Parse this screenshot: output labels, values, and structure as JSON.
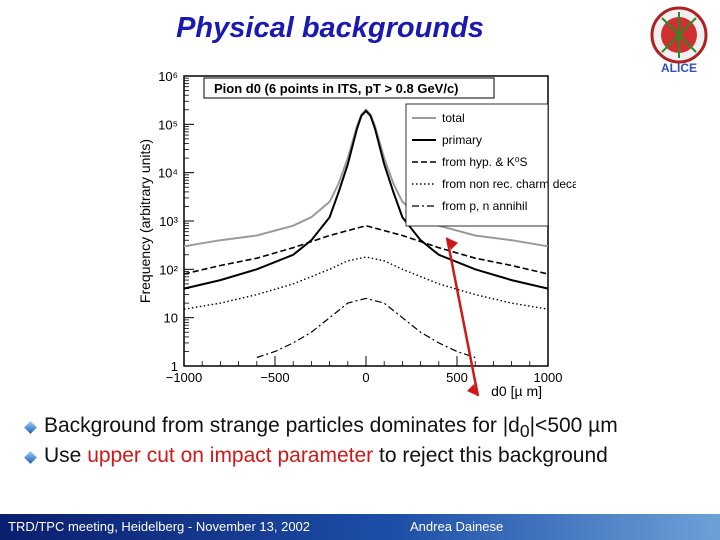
{
  "slide": {
    "title": "Physical backgrounds",
    "logo_text": "ALICE",
    "bullets": [
      {
        "prefix": "Background from strange particles dominates for |d",
        "sub": "0",
        "suffix": "|<500 µm"
      },
      {
        "before": "Use ",
        "highlight": "upper cut on impact parameter",
        "after": " to reject this background"
      }
    ],
    "footer_left": "TRD/TPC meeting, Heidelberg - November 13, 2002",
    "footer_right": "Andrea Dainese",
    "colors": {
      "title": "#1a1ab0",
      "highlight": "#d01818",
      "footer": "#0b1e6e",
      "arrow": "#d01818"
    }
  },
  "chart_data": {
    "type": "line",
    "title": "Pion d0 (6 points in ITS, pT > 0.8 GeV/c)",
    "xlabel": "d0 [µ m]",
    "ylabel": "Frequency (arbitrary units)",
    "xlim": [
      -1000,
      1000
    ],
    "ylim": [
      1,
      1000000
    ],
    "yscale": "log",
    "xticks": [
      "−1000",
      "−500",
      "0",
      "500",
      "1000"
    ],
    "yticks": [
      "1",
      "10",
      "10²",
      "10³",
      "10⁴",
      "10⁵",
      "10⁶"
    ],
    "legend_position": "top-right",
    "series": [
      {
        "name": "total",
        "style": "solid-gray",
        "x": [
          -1000,
          -800,
          -600,
          -400,
          -300,
          -200,
          -150,
          -100,
          -50,
          -25,
          0,
          25,
          50,
          100,
          150,
          200,
          300,
          400,
          600,
          800,
          1000
        ],
        "y": [
          300,
          400,
          500,
          800,
          1200,
          2500,
          6000,
          20000,
          90000,
          160000,
          200000,
          160000,
          90000,
          20000,
          6000,
          2500,
          1200,
          800,
          500,
          400,
          300
        ]
      },
      {
        "name": "primary",
        "style": "solid-black",
        "x": [
          -1000,
          -800,
          -600,
          -400,
          -300,
          -200,
          -150,
          -100,
          -50,
          -25,
          0,
          25,
          50,
          100,
          150,
          200,
          300,
          400,
          600,
          800,
          1000
        ],
        "y": [
          40,
          60,
          100,
          200,
          400,
          1200,
          4000,
          15000,
          80000,
          150000,
          190000,
          150000,
          80000,
          15000,
          4000,
          1200,
          400,
          200,
          100,
          60,
          40
        ]
      },
      {
        "name": "from hyp. & K⁰S",
        "style": "dashed",
        "x": [
          -1000,
          -800,
          -600,
          -400,
          -200,
          0,
          200,
          400,
          600,
          800,
          1000
        ],
        "y": [
          80,
          120,
          170,
          280,
          500,
          800,
          500,
          280,
          170,
          120,
          80
        ]
      },
      {
        "name": "from non rec. charm decays",
        "style": "dotted",
        "x": [
          -1000,
          -800,
          -600,
          -400,
          -200,
          -100,
          0,
          100,
          200,
          400,
          600,
          800,
          1000
        ],
        "y": [
          15,
          20,
          30,
          50,
          100,
          150,
          180,
          150,
          100,
          50,
          30,
          20,
          15
        ]
      },
      {
        "name": "from p, n annihil",
        "style": "dash-dot",
        "x": [
          -600,
          -500,
          -400,
          -300,
          -200,
          -100,
          0,
          100,
          200,
          300,
          400,
          500,
          600
        ],
        "y": [
          1.5,
          2,
          3,
          5,
          10,
          20,
          25,
          20,
          10,
          5,
          3,
          2,
          1.5
        ]
      }
    ],
    "annotation": "arrow pointing to the tail of the distribution near d0 = 500 µm"
  }
}
